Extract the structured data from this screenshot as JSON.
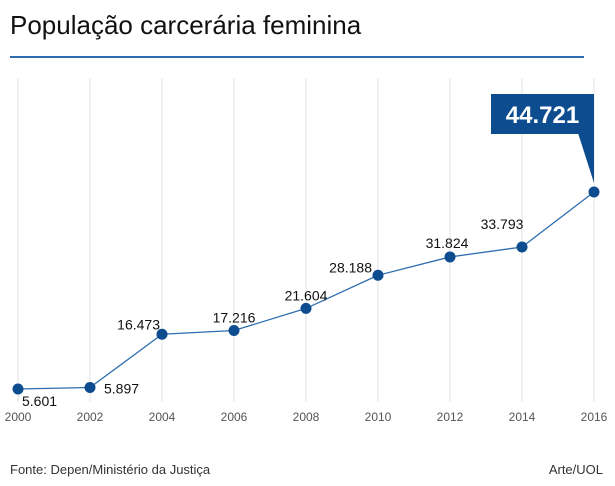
{
  "chart_data": {
    "type": "line",
    "title": "População carcerária feminina",
    "x": [
      2000,
      2002,
      2004,
      2006,
      2008,
      2010,
      2012,
      2014,
      2016
    ],
    "values": [
      5601,
      5897,
      16473,
      17216,
      21604,
      28188,
      31824,
      33793,
      44721
    ],
    "value_labels": [
      "5.601",
      "5.897",
      "16.473",
      "17.216",
      "21.604",
      "28.188",
      "31.824",
      "33.793",
      "44.721"
    ],
    "tick_labels": [
      "2000",
      "2002",
      "2004",
      "2006",
      "2008",
      "2010",
      "2012",
      "2014",
      "2016"
    ],
    "xlabel": "",
    "ylabel": "",
    "highlight": {
      "index": 8,
      "label": "44.721"
    },
    "grid": "vertical",
    "legend": "none",
    "colors": {
      "line": "#2f6db0",
      "marker": "#0d4c8f",
      "highlight_bg": "#0d4c8f",
      "grid": "#e3e3e3",
      "title_rule": "#2f6db0"
    }
  },
  "footer": {
    "source": "Fonte: Depen/Ministério da Justiça",
    "credit": "Arte/UOL"
  }
}
